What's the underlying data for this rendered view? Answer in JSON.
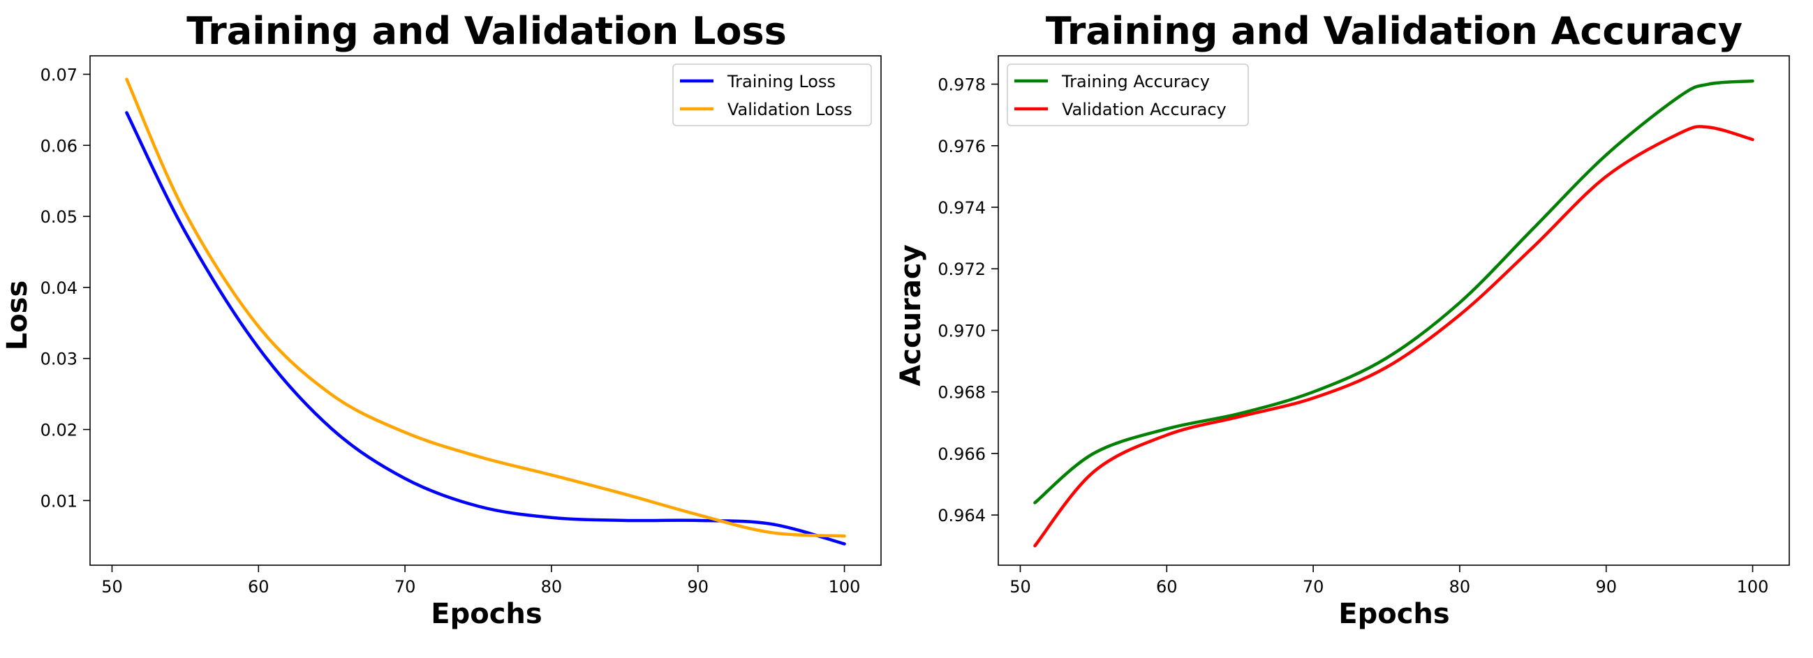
{
  "chart_data": [
    {
      "type": "line",
      "title": "Training and Validation Loss",
      "xlabel": "Epochs",
      "ylabel": "Loss",
      "xlim": [
        48.5,
        102.5
      ],
      "ylim": [
        0.0009,
        0.0726
      ],
      "xticks": [
        50,
        60,
        70,
        80,
        90,
        100
      ],
      "yticks": [
        0.01,
        0.02,
        0.03,
        0.04,
        0.05,
        0.06,
        0.07
      ],
      "xtick_labels": [
        "50",
        "60",
        "70",
        "80",
        "90",
        "100"
      ],
      "ytick_labels": [
        "0.01",
        "0.02",
        "0.03",
        "0.04",
        "0.05",
        "0.06",
        "0.07"
      ],
      "legend_position": "upper right",
      "grid": false,
      "x": [
        51,
        55,
        60,
        65,
        70,
        75,
        80,
        85,
        90,
        95,
        100
      ],
      "series": [
        {
          "name": "Training Loss",
          "color": "#0000ff",
          "values": [
            0.0646,
            0.0478,
            0.0315,
            0.0201,
            0.0131,
            0.0092,
            0.0076,
            0.0072,
            0.0072,
            0.0067,
            0.0039
          ]
        },
        {
          "name": "Validation Loss",
          "color": "#ffa500",
          "values": [
            0.0693,
            0.0505,
            0.0345,
            0.0249,
            0.0196,
            0.0162,
            0.0136,
            0.0109,
            0.008,
            0.0055,
            0.005
          ]
        }
      ]
    },
    {
      "type": "line",
      "title": "Training and Validation Accuracy",
      "xlabel": "Epochs",
      "ylabel": "Accuracy",
      "xlim": [
        48.5,
        102.5
      ],
      "ylim": [
        0.96237,
        0.97892
      ],
      "xticks": [
        50,
        60,
        70,
        80,
        90,
        100
      ],
      "yticks": [
        0.964,
        0.966,
        0.968,
        0.97,
        0.972,
        0.974,
        0.976,
        0.978
      ],
      "xtick_labels": [
        "50",
        "60",
        "70",
        "80",
        "90",
        "100"
      ],
      "ytick_labels": [
        "0.964",
        "0.966",
        "0.968",
        "0.970",
        "0.972",
        "0.974",
        "0.976",
        "0.978"
      ],
      "legend_position": "upper left",
      "grid": false,
      "x": [
        51,
        55,
        60,
        65,
        70,
        75,
        80,
        85,
        90,
        95,
        97,
        100
      ],
      "series": [
        {
          "name": "Training Accuracy",
          "color": "#008000",
          "values": [
            0.9644,
            0.966,
            0.9668,
            0.9673,
            0.968,
            0.9691,
            0.9709,
            0.9733,
            0.9757,
            0.9776,
            0.978,
            0.9781
          ]
        },
        {
          "name": "Validation Accuracy",
          "color": "#ff0000",
          "values": [
            0.963,
            0.9654,
            0.9666,
            0.9672,
            0.9678,
            0.9688,
            0.9705,
            0.9727,
            0.975,
            0.9764,
            0.9766,
            0.9762
          ]
        }
      ]
    }
  ]
}
